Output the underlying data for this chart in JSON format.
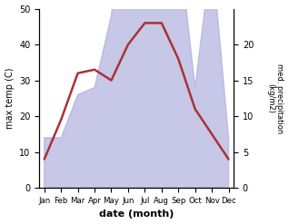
{
  "months": [
    "Jan",
    "Feb",
    "Mar",
    "Apr",
    "May",
    "Jun",
    "Jul",
    "Aug",
    "Sep",
    "Oct",
    "Nov",
    "Dec"
  ],
  "temp_max": [
    8,
    19,
    32,
    33,
    30,
    40,
    46,
    46,
    36,
    22,
    15,
    8
  ],
  "precipitation": [
    7,
    7,
    13,
    14,
    24,
    48,
    43,
    44,
    35,
    14,
    33,
    7
  ],
  "temp_ylim": [
    0,
    50
  ],
  "precip_ylim": [
    0,
    25
  ],
  "temp_color": "#aa3333",
  "precip_fill_color": "#aaaadd",
  "precip_fill_alpha": 0.65,
  "xlabel": "date (month)",
  "ylabel_left": "max temp (C)",
  "ylabel_right": "med. precipitation\n(kg/m2)",
  "bg_color": "#ffffff",
  "temp_linewidth": 1.8,
  "precip_right_ticks": [
    0,
    5,
    10,
    15,
    20
  ],
  "temp_left_ticks": [
    0,
    10,
    20,
    30,
    40,
    50
  ]
}
